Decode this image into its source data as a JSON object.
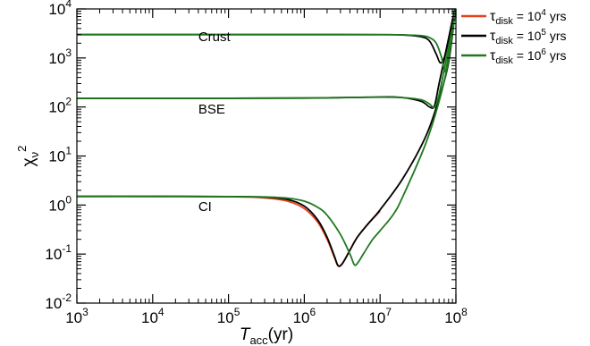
{
  "chart_data": {
    "type": "line",
    "xscale": "log",
    "yscale": "log",
    "xlim": [
      1000,
      100000000
    ],
    "ylim": [
      0.01,
      10000
    ],
    "xlabel": {
      "main": "T",
      "sub": "acc",
      "rest": "(yr)"
    },
    "ylabel": {
      "main": "χ",
      "sub": "ν",
      "sup": "2"
    },
    "x_ticks": [
      {
        "base": "10",
        "exp": "3",
        "value": 1000
      },
      {
        "base": "10",
        "exp": "4",
        "value": 10000
      },
      {
        "base": "10",
        "exp": "5",
        "value": 100000
      },
      {
        "base": "10",
        "exp": "6",
        "value": 1000000
      },
      {
        "base": "10",
        "exp": "7",
        "value": 10000000
      },
      {
        "base": "10",
        "exp": "8",
        "value": 100000000
      }
    ],
    "y_ticks": [
      {
        "base": "10",
        "exp": "-2",
        "value": 0.01
      },
      {
        "base": "10",
        "exp": "-1",
        "value": 0.1
      },
      {
        "base": "10",
        "exp": "0",
        "value": 1
      },
      {
        "base": "10",
        "exp": "1",
        "value": 10
      },
      {
        "base": "10",
        "exp": "2",
        "value": 100
      },
      {
        "base": "10",
        "exp": "3",
        "value": 1000
      },
      {
        "base": "10",
        "exp": "4",
        "value": 10000
      }
    ],
    "grid": false,
    "legend_position": "top-right, outside",
    "annotations": [
      {
        "text": "Crust",
        "x": 40000,
        "y": 2200
      },
      {
        "text": "BSE",
        "x": 40000,
        "y": 73
      },
      {
        "text": "CI",
        "x": 40000,
        "y": 0.75
      }
    ],
    "series": [
      {
        "name": {
          "sym": "τ",
          "sub": "disk",
          "eq": " = 10",
          "sup": "4",
          "unit": " yrs"
        },
        "color": "#e8401c",
        "group": "CI",
        "x": [
          1000,
          10000,
          100000,
          300000,
          600000,
          1000000,
          1500000,
          2000000,
          2500000,
          2800000,
          3200000,
          4000000,
          5000000,
          7000000,
          10000000
        ],
        "y": [
          1.5,
          1.5,
          1.48,
          1.4,
          1.2,
          0.85,
          0.45,
          0.2,
          0.085,
          0.057,
          0.065,
          0.12,
          0.22,
          0.42,
          0.75
        ]
      },
      {
        "name": {
          "sym": "τ",
          "sub": "disk",
          "eq": " = 10",
          "sup": "5",
          "unit": " yrs"
        },
        "color": "#000000",
        "group": "CI",
        "x": [
          1000,
          10000,
          100000,
          300000,
          600000,
          1000000,
          1500000,
          2000000,
          2500000,
          2800000,
          3200000,
          4000000,
          5000000,
          7000000,
          10000000,
          20000000,
          40000000,
          60000000,
          80000000,
          100000000
        ],
        "y": [
          1.5,
          1.5,
          1.49,
          1.45,
          1.3,
          0.95,
          0.5,
          0.22,
          0.09,
          0.058,
          0.065,
          0.12,
          0.22,
          0.42,
          0.8,
          3.5,
          25,
          150,
          800,
          12000
        ]
      },
      {
        "name": {
          "sym": "τ",
          "sub": "disk",
          "eq": " = 10",
          "sup": "6",
          "unit": " yrs"
        },
        "color": "#1f7a1f",
        "group": "CI",
        "x": [
          1000,
          10000,
          100000,
          300000,
          600000,
          1000000,
          1500000,
          2000000,
          3000000,
          4000000,
          4600000,
          5200000,
          6000000,
          8000000,
          10000000,
          15000000,
          20000000,
          40000000,
          60000000,
          80000000,
          100000000
        ],
        "y": [
          1.5,
          1.5,
          1.49,
          1.46,
          1.38,
          1.2,
          0.9,
          0.62,
          0.25,
          0.1,
          0.06,
          0.07,
          0.1,
          0.2,
          0.3,
          0.65,
          1.5,
          18,
          130,
          900,
          12000
        ]
      },
      {
        "name": "",
        "color": "#000000",
        "group": "BSE",
        "x": [
          1000,
          10000,
          1000000,
          10000000,
          20000000,
          35000000,
          45000000,
          52000000,
          60000000,
          75000000,
          90000000,
          100000000
        ],
        "y": [
          150,
          150,
          152,
          160,
          155,
          130,
          100,
          105,
          300,
          1500,
          5500,
          12000
        ]
      },
      {
        "name": "",
        "color": "#1f7a1f",
        "group": "BSE",
        "x": [
          1000,
          10000,
          1000000,
          10000000,
          20000000,
          35000000,
          45000000,
          52000000,
          60000000,
          75000000,
          90000000,
          100000000
        ],
        "y": [
          150,
          150,
          152,
          158,
          155,
          140,
          115,
          98,
          180,
          1000,
          4500,
          12000
        ]
      },
      {
        "name": "",
        "color": "#000000",
        "group": "Crust",
        "x": [
          1000,
          10000,
          1000000,
          10000000,
          20000000,
          35000000,
          45000000,
          55000000,
          62000000,
          70000000,
          80000000,
          90000000,
          100000000
        ],
        "y": [
          3000,
          3000,
          3000,
          2990,
          2950,
          2700,
          2200,
          1200,
          800,
          1000,
          2500,
          6000,
          12000
        ]
      },
      {
        "name": "",
        "color": "#1f7a1f",
        "group": "Crust",
        "x": [
          1000,
          10000,
          1000000,
          10000000,
          20000000,
          35000000,
          45000000,
          55000000,
          65000000,
          72000000,
          80000000,
          90000000,
          100000000
        ],
        "y": [
          3000,
          3000,
          3000,
          2990,
          2960,
          2850,
          2600,
          2000,
          1000,
          520,
          1200,
          4000,
          12000
        ]
      }
    ]
  }
}
